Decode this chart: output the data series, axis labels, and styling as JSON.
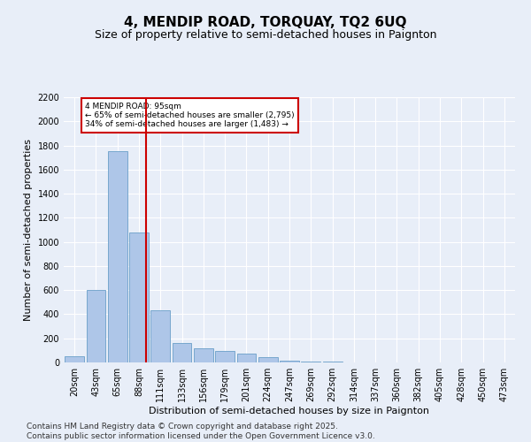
{
  "title": "4, MENDIP ROAD, TORQUAY, TQ2 6UQ",
  "subtitle": "Size of property relative to semi-detached houses in Paignton",
  "xlabel": "Distribution of semi-detached houses by size in Paignton",
  "ylabel": "Number of semi-detached properties",
  "categories": [
    "20sqm",
    "43sqm",
    "65sqm",
    "88sqm",
    "111sqm",
    "133sqm",
    "156sqm",
    "179sqm",
    "201sqm",
    "224sqm",
    "247sqm",
    "269sqm",
    "292sqm",
    "314sqm",
    "337sqm",
    "360sqm",
    "382sqm",
    "405sqm",
    "428sqm",
    "450sqm",
    "473sqm"
  ],
  "values": [
    50,
    600,
    1750,
    1080,
    430,
    160,
    120,
    95,
    75,
    45,
    18,
    4,
    4,
    0,
    0,
    0,
    0,
    0,
    0,
    0,
    0
  ],
  "bar_color": "#aec6e8",
  "bar_edge_color": "#6a9fc8",
  "red_line_x": 3.32,
  "annotation_line1": "4 MENDIP ROAD: 95sqm",
  "annotation_line2": "← 65% of semi-detached houses are smaller (2,795)",
  "annotation_line3": "34% of semi-detached houses are larger (1,483) →",
  "annotation_box_color": "#ffffff",
  "annotation_box_edge": "#cc0000",
  "ylim": [
    0,
    2200
  ],
  "yticks": [
    0,
    200,
    400,
    600,
    800,
    1000,
    1200,
    1400,
    1600,
    1800,
    2000,
    2200
  ],
  "footnote1": "Contains HM Land Registry data © Crown copyright and database right 2025.",
  "footnote2": "Contains public sector information licensed under the Open Government Licence v3.0.",
  "background_color": "#e8eef8",
  "plot_bg_color": "#e8eef8",
  "title_fontsize": 11,
  "subtitle_fontsize": 9,
  "axis_label_fontsize": 8,
  "tick_fontsize": 7,
  "footnote_fontsize": 6.5
}
